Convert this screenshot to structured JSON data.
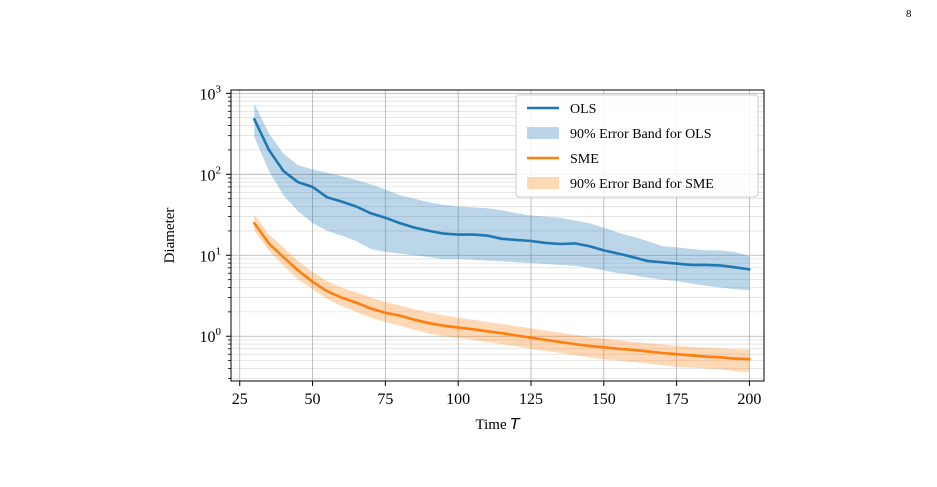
{
  "page_number": "8",
  "chart_data": {
    "type": "line",
    "title": "",
    "xlabel": "Time",
    "xlabel_var": "T",
    "ylabel": "Diameter",
    "xlim": [
      22,
      205
    ],
    "ylim": [
      0.28,
      1100
    ],
    "yscale": "log",
    "grid": true,
    "legend_position": "top-right",
    "x_ticks": [
      25,
      50,
      75,
      100,
      125,
      150,
      175,
      200
    ],
    "y_ticks": [
      {
        "value": 1,
        "base": "10",
        "exp": "0"
      },
      {
        "value": 10,
        "base": "10",
        "exp": "1"
      },
      {
        "value": 100,
        "base": "10",
        "exp": "2"
      },
      {
        "value": 1000,
        "base": "10",
        "exp": "3"
      }
    ],
    "x": [
      30,
      35,
      40,
      45,
      50,
      55,
      60,
      65,
      70,
      75,
      80,
      85,
      90,
      95,
      100,
      105,
      110,
      115,
      120,
      125,
      130,
      135,
      140,
      145,
      150,
      155,
      160,
      165,
      170,
      175,
      180,
      185,
      190,
      195,
      200
    ],
    "series": [
      {
        "name": "OLS",
        "color": "#1f77b4",
        "values": [
          480,
          200,
          110,
          80,
          70,
          52,
          46,
          40,
          33,
          29,
          25,
          22,
          20,
          18.5,
          18,
          18,
          17.5,
          16,
          15.5,
          15,
          14.2,
          13.8,
          14,
          13,
          11.5,
          10.5,
          9.5,
          8.5,
          8.2,
          7.9,
          7.6,
          7.6,
          7.5,
          7.1,
          6.7
        ]
      },
      {
        "name": "SME",
        "color": "#ff7f0e",
        "values": [
          25,
          14,
          9.5,
          6.5,
          4.7,
          3.6,
          3,
          2.6,
          2.2,
          1.95,
          1.8,
          1.6,
          1.45,
          1.35,
          1.28,
          1.22,
          1.15,
          1.09,
          1.02,
          0.96,
          0.9,
          0.85,
          0.8,
          0.76,
          0.73,
          0.7,
          0.68,
          0.65,
          0.62,
          0.6,
          0.58,
          0.56,
          0.55,
          0.53,
          0.52
        ]
      }
    ],
    "bands": [
      {
        "name": "90% Error Band for OLS",
        "color": "#1f77b4",
        "lower": [
          290,
          110,
          55,
          35,
          25,
          20,
          17.5,
          15,
          12,
          11,
          10.5,
          10,
          9.5,
          9,
          9,
          8.8,
          8.6,
          8.4,
          8.2,
          8,
          7.8,
          7.6,
          7.4,
          7,
          6.5,
          6,
          5.7,
          5.3,
          5,
          4.8,
          4.5,
          4.2,
          4,
          3.8,
          3.7
        ],
        "upper": [
          750,
          320,
          180,
          130,
          115,
          105,
          95,
          85,
          75,
          65,
          55,
          50,
          45,
          42,
          40,
          39,
          38,
          36,
          33,
          31,
          30,
          29,
          27,
          25,
          22,
          19,
          17,
          15,
          13,
          12.5,
          12,
          11.5,
          11.5,
          11,
          9.8
        ]
      },
      {
        "name": "90% Error Band for SME",
        "color": "#ff7f0e",
        "lower": [
          20,
          11.5,
          7.5,
          5,
          3.8,
          2.9,
          2.35,
          2,
          1.7,
          1.5,
          1.35,
          1.2,
          1.08,
          1,
          0.95,
          0.9,
          0.85,
          0.8,
          0.75,
          0.7,
          0.66,
          0.62,
          0.58,
          0.55,
          0.52,
          0.5,
          0.48,
          0.46,
          0.44,
          0.42,
          0.41,
          0.4,
          0.39,
          0.37,
          0.36
        ],
        "upper": [
          32,
          18,
          12.5,
          8.5,
          6.2,
          4.8,
          4,
          3.5,
          3,
          2.65,
          2.4,
          2.15,
          1.95,
          1.82,
          1.7,
          1.6,
          1.5,
          1.42,
          1.33,
          1.25,
          1.17,
          1.1,
          1.04,
          0.98,
          0.93,
          0.89,
          0.85,
          0.82,
          0.79,
          0.76,
          0.74,
          0.72,
          0.71,
          0.69,
          0.68
        ]
      }
    ],
    "legend": [
      {
        "kind": "line",
        "label": "OLS",
        "color": "#1f77b4"
      },
      {
        "kind": "band",
        "label": "90% Error Band for OLS",
        "color": "#1f77b4"
      },
      {
        "kind": "line",
        "label": "SME",
        "color": "#ff7f0e"
      },
      {
        "kind": "band",
        "label": "90% Error Band for SME",
        "color": "#ff7f0e"
      }
    ]
  }
}
